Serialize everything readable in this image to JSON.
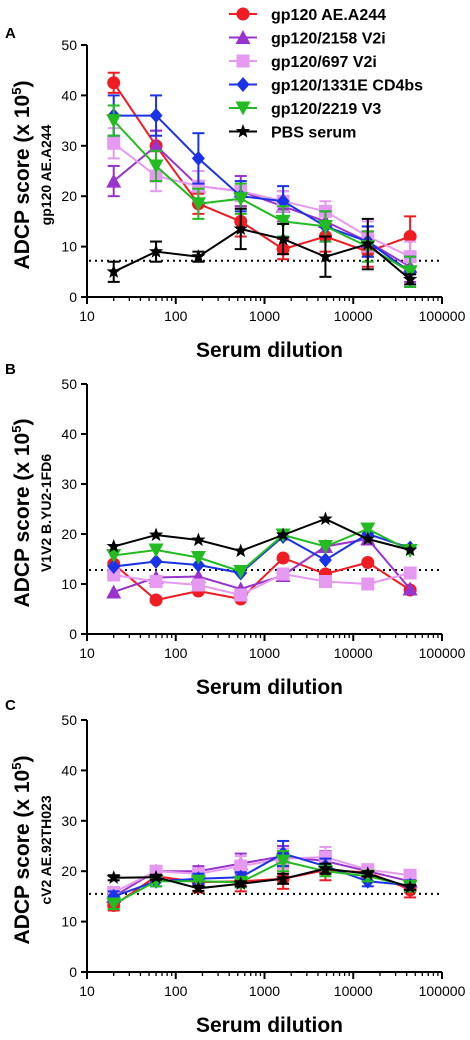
{
  "legend": [
    {
      "name": "gp120 AE.A244",
      "color": "#ef1c24",
      "marker": "circle"
    },
    {
      "name": "gp120/2158 V2i",
      "color": "#9933cc",
      "marker": "triangle-up"
    },
    {
      "name": "gp120/697 V2i",
      "color": "#e699f0",
      "marker": "square"
    },
    {
      "name": "gp120/1331E CD4bs",
      "color": "#1a33e6",
      "marker": "diamond"
    },
    {
      "name": "gp120/2219 V3",
      "color": "#22bb22",
      "marker": "triangle-down"
    },
    {
      "name": "PBS serum",
      "color": "#000000",
      "marker": "star"
    }
  ],
  "chart_data": [
    {
      "type": "line",
      "panel": "A",
      "ylabel": "ADCP score (x 10",
      "ylabel_sup": "5",
      "ylabel_sub": "gp120 AE.A244",
      "xlabel": "Serum dilution",
      "xscale": "log",
      "xlim": [
        10,
        100000
      ],
      "ylim": [
        0,
        50
      ],
      "xticks": [
        "10",
        "100",
        "1000",
        "10000",
        "100000"
      ],
      "yticks": [
        "0",
        "10",
        "20",
        "30",
        "40",
        "50"
      ],
      "threshold": 7.2,
      "x": [
        20,
        60,
        180,
        540,
        1620,
        4860,
        14580,
        43740
      ],
      "series": [
        {
          "name": "gp120 AE.A244",
          "values": [
            42.5,
            30.0,
            18.5,
            15.0,
            9.5,
            12.0,
            9.0,
            12.0
          ],
          "err": [
            2,
            3,
            2,
            3,
            2,
            3,
            3,
            4
          ]
        },
        {
          "name": "gp120/2158 V2i",
          "values": [
            23.0,
            30.0,
            22.0,
            21.0,
            18.0,
            15.0,
            11.0,
            6.0
          ],
          "err": [
            3,
            3,
            3,
            3,
            3,
            3,
            3,
            3
          ]
        },
        {
          "name": "gp120/697 V2i",
          "values": [
            30.5,
            24.0,
            22.0,
            21.0,
            19.0,
            17.0,
            12.0,
            8.0
          ],
          "err": [
            3,
            3,
            3,
            2,
            2,
            2,
            3,
            3
          ]
        },
        {
          "name": "gp120/1331E CD4bs",
          "values": [
            36.0,
            36.0,
            27.5,
            20.0,
            19.0,
            14.0,
            11.0,
            5.0
          ],
          "err": [
            4,
            4,
            5,
            3,
            3,
            3,
            3,
            3
          ]
        },
        {
          "name": "gp120/2219 V3",
          "values": [
            35.0,
            26.0,
            18.5,
            19.5,
            15.0,
            14.0,
            10.0,
            5.0
          ],
          "err": [
            3,
            3,
            3,
            3,
            3,
            3,
            3,
            3
          ]
        },
        {
          "name": "PBS serum",
          "values": [
            5.0,
            9.0,
            8.0,
            13.5,
            11.5,
            8.0,
            10.5,
            3.5
          ],
          "err": [
            2,
            2,
            1,
            4,
            3,
            4,
            5,
            1
          ]
        }
      ]
    },
    {
      "type": "line",
      "panel": "B",
      "ylabel": "ADCP score (x 10",
      "ylabel_sup": "5",
      "ylabel_sub": "V1V2 B.YU2-1FD6",
      "xlabel": "Serum dilution",
      "xscale": "log",
      "xlim": [
        10,
        100000
      ],
      "ylim": [
        0,
        50
      ],
      "xticks": [
        "10",
        "100",
        "1000",
        "10000",
        "100000"
      ],
      "yticks": [
        "0",
        "10",
        "20",
        "30",
        "40",
        "50"
      ],
      "threshold": 12.8,
      "x": [
        20,
        60,
        180,
        540,
        1620,
        4860,
        14580,
        43740
      ],
      "series": [
        {
          "name": "gp120 AE.A244",
          "values": [
            14.0,
            6.8,
            8.6,
            7.0,
            15.2,
            12.0,
            14.3,
            8.8
          ],
          "err": [
            0,
            0,
            0,
            0,
            0,
            0,
            0,
            0
          ]
        },
        {
          "name": "gp120/2158 V2i",
          "values": [
            8.4,
            11.3,
            11.5,
            9.0,
            11.7,
            17.5,
            19.0,
            9.0
          ],
          "err": [
            0,
            0,
            0,
            0,
            0,
            0,
            0,
            0
          ]
        },
        {
          "name": "gp120/697 V2i",
          "values": [
            11.8,
            10.5,
            9.8,
            7.8,
            12.0,
            10.5,
            10.0,
            12.2
          ],
          "err": [
            0,
            0,
            0,
            0,
            0,
            0,
            0,
            0
          ]
        },
        {
          "name": "gp120/1331E CD4bs",
          "values": [
            13.5,
            14.5,
            13.8,
            12.2,
            19.5,
            14.8,
            20.0,
            17.2
          ],
          "err": [
            0,
            0,
            0,
            0,
            0,
            0,
            0,
            0
          ]
        },
        {
          "name": "gp120/2219 V3",
          "values": [
            15.7,
            16.8,
            15.3,
            12.5,
            19.8,
            17.5,
            21.0,
            16.7
          ],
          "err": [
            0,
            0,
            0,
            0,
            0,
            0,
            0,
            0
          ]
        },
        {
          "name": "PBS serum",
          "values": [
            17.5,
            19.8,
            18.8,
            16.6,
            19.8,
            23.0,
            19.0,
            16.8
          ],
          "err": [
            0,
            0,
            0,
            0,
            0,
            0,
            0,
            0
          ]
        }
      ]
    },
    {
      "type": "line",
      "panel": "C",
      "ylabel": "ADCP score (x 10",
      "ylabel_sup": "5",
      "ylabel_sub": "cV2 AE.92TH023",
      "xlabel": "Serum dilution",
      "xscale": "log",
      "xlim": [
        10,
        100000
      ],
      "ylim": [
        0,
        50
      ],
      "xticks": [
        "10",
        "100",
        "1000",
        "10000",
        "100000"
      ],
      "yticks": [
        "0",
        "10",
        "20",
        "30",
        "40",
        "50"
      ],
      "threshold": 15.5,
      "x": [
        20,
        60,
        180,
        540,
        1620,
        4860,
        14580,
        43740
      ],
      "series": [
        {
          "name": "gp120 AE.A244",
          "values": [
            13.2,
            19.0,
            17.8,
            18.0,
            18.5,
            20.2,
            19.8,
            16.3
          ],
          "err": [
            1,
            1,
            2,
            2,
            2,
            2,
            1,
            1.5
          ]
        },
        {
          "name": "gp120/2158 V2i",
          "values": [
            15.0,
            20.0,
            20.0,
            21.5,
            23.0,
            22.0,
            20.0,
            18.0
          ],
          "err": [
            1,
            1,
            1,
            2,
            2,
            2,
            1,
            1
          ]
        },
        {
          "name": "gp120/697 V2i",
          "values": [
            15.8,
            20.0,
            19.5,
            21.0,
            22.5,
            22.8,
            20.3,
            19.2
          ],
          "err": [
            1,
            1,
            1,
            2,
            2,
            2,
            1,
            1
          ]
        },
        {
          "name": "gp120/1331E CD4bs",
          "values": [
            15.0,
            18.0,
            18.5,
            18.8,
            23.5,
            21.0,
            18.0,
            17.2
          ],
          "err": [
            1,
            1,
            1,
            1,
            2.5,
            1.5,
            1,
            1
          ]
        },
        {
          "name": "gp120/2219 V3",
          "values": [
            13.5,
            18.0,
            18.0,
            17.8,
            22.0,
            20.0,
            19.0,
            17.0
          ],
          "err": [
            1,
            1,
            1,
            1,
            2,
            1,
            1,
            1
          ]
        },
        {
          "name": "PBS serum",
          "values": [
            18.7,
            18.8,
            16.6,
            17.5,
            18.5,
            20.5,
            19.5,
            16.8
          ],
          "err": [
            0.5,
            0.5,
            0.5,
            0.5,
            1,
            1,
            0.5,
            0.5
          ]
        }
      ]
    }
  ]
}
